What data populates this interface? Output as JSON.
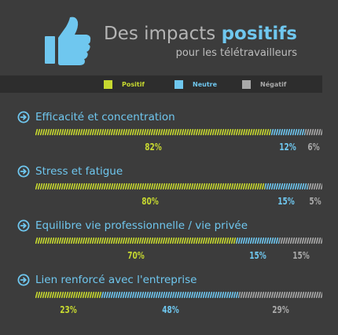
{
  "header": {
    "title_prefix": "Des impacts",
    "title_highlight": "positifs",
    "subtitle": "pour les télétravailleurs"
  },
  "colors": {
    "background": "#3c3c3c",
    "strip": "#2d2d2d",
    "positif": "#c7d930",
    "neutre": "#6fc7ef",
    "negatif": "#a9a9a9",
    "thumb": "#6fc7ef"
  },
  "icons": {
    "header": "thumbs-up-icon",
    "row": "arrow-circle-right-icon"
  },
  "chart_data": {
    "type": "bar",
    "stacked": true,
    "orientation": "horizontal",
    "legend_position": "top",
    "legend": [
      "Positif",
      "Neutre",
      "Négatif"
    ],
    "categories": [
      "Efficacité et concentration",
      "Stress et fatigue",
      "Equilibre vie professionnelle / vie privée",
      "Lien renforcé avec l'entreprise"
    ],
    "series": [
      {
        "name": "Positif",
        "values": [
          82,
          80,
          70,
          23
        ],
        "labels": [
          "82%",
          "80%",
          "70%",
          "23%"
        ]
      },
      {
        "name": "Neutre",
        "values": [
          12,
          15,
          15,
          48
        ],
        "labels": [
          "12%",
          "15%",
          "15%",
          "48%"
        ]
      },
      {
        "name": "Négatif",
        "values": [
          6,
          5,
          15,
          29
        ],
        "labels": [
          "6%",
          "5%",
          "15%",
          "29%"
        ]
      }
    ]
  }
}
